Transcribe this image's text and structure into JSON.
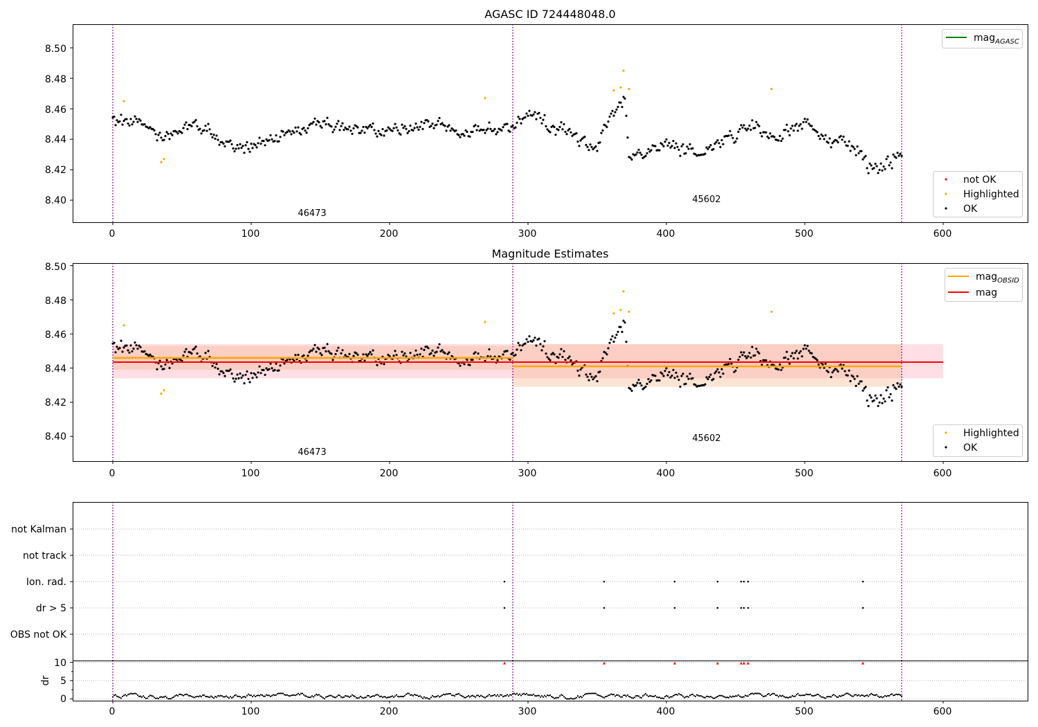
{
  "colors": {
    "ok": "#000000",
    "highlighted": "#ffa500",
    "not_ok": "#ff0000",
    "mag_agasc": "#008000",
    "mag_obsid": "#ffa500",
    "mag": "#ff0000",
    "obsid_separator": "#800080",
    "band_obsid": "#f4b183",
    "band_mag": "#ffc0cb"
  },
  "chart_data": [
    {
      "type": "scatter",
      "title": "AGASC ID 724448048.0",
      "xlim": [
        -29,
        661
      ],
      "ylim": [
        8.3855,
        8.5155
      ],
      "xticks": [
        "0",
        "100",
        "200",
        "300",
        "400",
        "500",
        "600"
      ],
      "yticks": [
        "8.40",
        "8.42",
        "8.44",
        "8.46",
        "8.48",
        "8.50"
      ],
      "legend_lines": {
        "position": "top-right",
        "entries": [
          {
            "label": "mag",
            "sub": "AGASC",
            "color": "#008000"
          }
        ]
      },
      "legend_points": {
        "position": "lower-right",
        "entries": [
          "not OK",
          "Highlighted",
          "OK"
        ]
      },
      "obsid_labels": [
        "46473",
        "45602"
      ],
      "obsid_label_x": [
        144,
        430
      ],
      "obsid_label_y": [
        8.389,
        8.398
      ],
      "obsid_boundaries": [
        0,
        289,
        570
      ],
      "series": [
        {
          "name": "OK",
          "description": "black points, noisy track",
          "anchors_x": [
            0,
            15,
            35,
            55,
            80,
            100,
            120,
            150,
            170,
            200,
            230,
            250,
            270,
            289,
            300,
            330,
            350,
            358,
            370,
            373,
            400,
            420,
            440,
            460,
            480,
            500,
            520,
            540,
            545,
            570
          ],
          "anchors_y": [
            8.451,
            8.454,
            8.441,
            8.45,
            8.44,
            8.436,
            8.442,
            8.452,
            8.446,
            8.444,
            8.452,
            8.443,
            8.448,
            8.444,
            8.456,
            8.444,
            8.432,
            8.455,
            8.468,
            8.428,
            8.436,
            8.432,
            8.438,
            8.45,
            8.439,
            8.452,
            8.437,
            8.434,
            8.421,
            8.43
          ]
        },
        {
          "name": "Highlighted",
          "x": [
            8,
            35,
            37,
            269,
            362,
            367,
            369,
            373,
            476
          ],
          "y": [
            8.465,
            8.425,
            8.427,
            8.467,
            8.472,
            8.474,
            8.485,
            8.473,
            8.473
          ]
        },
        {
          "name": "not OK",
          "x": [],
          "y": []
        }
      ]
    },
    {
      "type": "scatter",
      "title": "Magnitude Estimates",
      "xlim": [
        -29,
        661
      ],
      "ylim": [
        8.3855,
        8.5015
      ],
      "xticks": [
        "0",
        "100",
        "200",
        "300",
        "400",
        "500",
        "600"
      ],
      "yticks": [
        "8.40",
        "8.42",
        "8.44",
        "8.46",
        "8.48",
        "8.50"
      ],
      "legend_lines": {
        "position": "top-right",
        "entries": [
          {
            "label": "mag",
            "sub": "OBSID",
            "color": "#ffa500"
          },
          {
            "label": "mag",
            "sub": "",
            "color": "#ff0000"
          }
        ]
      },
      "legend_points": {
        "position": "lower-right",
        "entries": [
          "Highlighted",
          "OK"
        ]
      },
      "obsid_labels": [
        "46473",
        "45602"
      ],
      "obsid_label_x": [
        144,
        430
      ],
      "obsid_label_y": [
        8.3925,
        8.3985
      ],
      "obsid_boundaries": [
        0,
        289,
        570
      ],
      "mag_obsid": [
        {
          "x0": 0,
          "x1": 289,
          "value": 8.446,
          "band": [
            8.439,
            8.453
          ]
        },
        {
          "x0": 289,
          "x1": 570,
          "value": 8.441,
          "band": [
            8.429,
            8.454
          ]
        }
      ],
      "mag": {
        "x0": 0,
        "x1": 600,
        "value": 8.4435,
        "band": [
          8.434,
          8.454
        ]
      }
    },
    {
      "type": "scatter",
      "title": "",
      "xlim": [
        -29,
        661
      ],
      "categories": [
        "not Kalman",
        "not track",
        "Ion. rad.",
        "dr > 5",
        "OBS not OK"
      ],
      "flag_x": [
        283,
        355,
        406,
        437,
        454,
        456,
        459,
        542
      ],
      "flags": {
        "not Kalman": [],
        "not track": [],
        "Ion. rad.": [
          283,
          355,
          406,
          437,
          454,
          456,
          459,
          542
        ],
        "dr > 5": [
          283,
          355,
          406,
          437,
          454,
          456,
          459,
          542
        ],
        "OBS not OK": []
      },
      "obsid_boundaries": [
        0,
        289,
        570
      ]
    },
    {
      "type": "scatter",
      "title": "",
      "ylabel": "dr",
      "xlim": [
        -29,
        661
      ],
      "ylim": [
        -0.5,
        10.5
      ],
      "xticks": [
        "0",
        "100",
        "200",
        "300",
        "400",
        "500",
        "600"
      ],
      "yticks": [
        "0",
        "5",
        "10"
      ],
      "capped_points": {
        "x": [
          283,
          355,
          406,
          437,
          454,
          456,
          459,
          542
        ],
        "value": 10
      },
      "dr_typical_range": [
        0.1,
        1.5
      ],
      "obsid_boundaries": [
        0,
        289,
        570
      ]
    }
  ]
}
